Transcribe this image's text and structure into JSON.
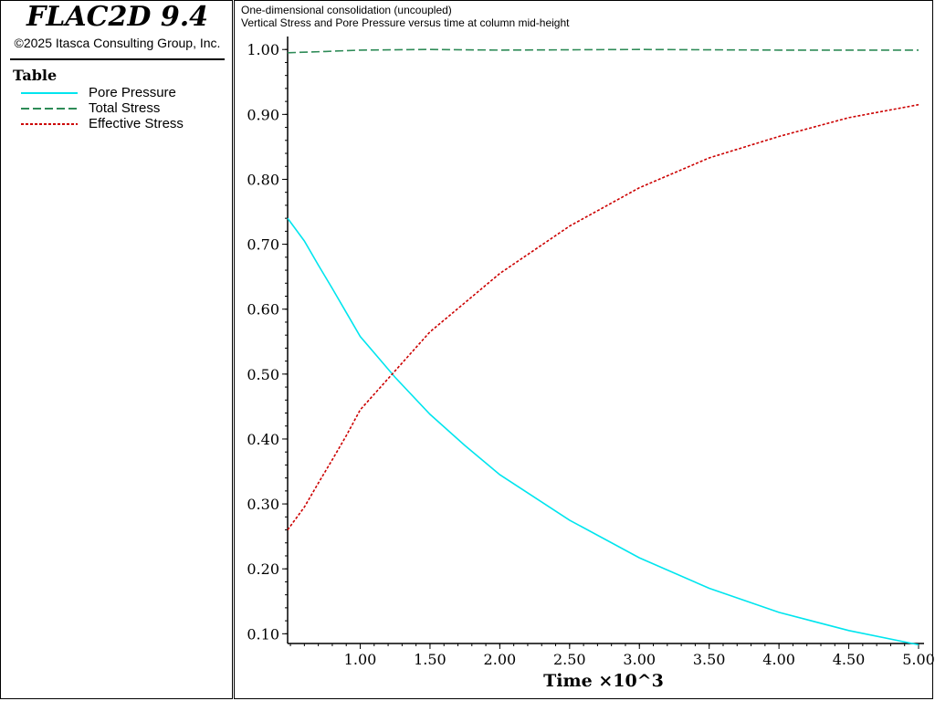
{
  "app": {
    "title": "FLAC2D 9.4",
    "copyright": "©2025 Itasca Consulting Group, Inc."
  },
  "legend": {
    "heading": "Table",
    "items": [
      {
        "label": "Pore Pressure",
        "color": "#00e5ee",
        "style": "solid"
      },
      {
        "label": "Total Stress",
        "color": "#2e8b57",
        "style": "dashed"
      },
      {
        "label": "Effective Stress",
        "color": "#cc0000",
        "style": "dotted"
      }
    ]
  },
  "chart_data": {
    "type": "line",
    "title": "One-dimensional consolidation (uncoupled)",
    "subtitle": "Vertical Stress and Pore Pressure versus time at column mid-height",
    "xlabel": "Time ×10^3",
    "ylabel": "",
    "xlim": [
      0.48,
      5.0
    ],
    "ylim": [
      0.085,
      1.02
    ],
    "xticks": [
      "1.00",
      "1.50",
      "2.00",
      "2.50",
      "3.00",
      "3.50",
      "4.00",
      "4.50",
      "5.00"
    ],
    "yticks": [
      "1.00",
      "0.90",
      "0.80",
      "0.70",
      "0.60",
      "0.50",
      "0.40",
      "0.30",
      "0.20",
      "0.10"
    ],
    "grid": false,
    "legend_position": "left-panel",
    "series": [
      {
        "name": "Pore Pressure",
        "color": "#00e5ee",
        "style": "solid",
        "x": [
          0.48,
          0.6,
          0.7,
          0.8,
          0.9,
          1.0,
          1.25,
          1.5,
          1.75,
          2.0,
          2.5,
          3.0,
          3.5,
          4.0,
          4.5,
          5.0
        ],
        "y": [
          0.74,
          0.705,
          0.668,
          0.632,
          0.595,
          0.558,
          0.495,
          0.438,
          0.39,
          0.345,
          0.275,
          0.217,
          0.17,
          0.133,
          0.105,
          0.083
        ]
      },
      {
        "name": "Total Stress",
        "color": "#2e8b57",
        "style": "dashed",
        "x": [
          0.48,
          0.75,
          1.0,
          1.5,
          2.0,
          3.0,
          4.0,
          5.0
        ],
        "y": [
          0.995,
          0.997,
          0.999,
          1.0,
          0.999,
          1.0,
          0.999,
          0.999
        ]
      },
      {
        "name": "Effective Stress",
        "color": "#cc0000",
        "style": "dotted",
        "x": [
          0.48,
          0.6,
          0.7,
          0.8,
          0.9,
          1.0,
          1.25,
          1.5,
          1.75,
          2.0,
          2.5,
          3.0,
          3.5,
          4.0,
          4.5,
          5.0
        ],
        "y": [
          0.26,
          0.295,
          0.332,
          0.368,
          0.405,
          0.445,
          0.505,
          0.565,
          0.61,
          0.655,
          0.728,
          0.787,
          0.833,
          0.866,
          0.895,
          0.915
        ]
      }
    ]
  }
}
